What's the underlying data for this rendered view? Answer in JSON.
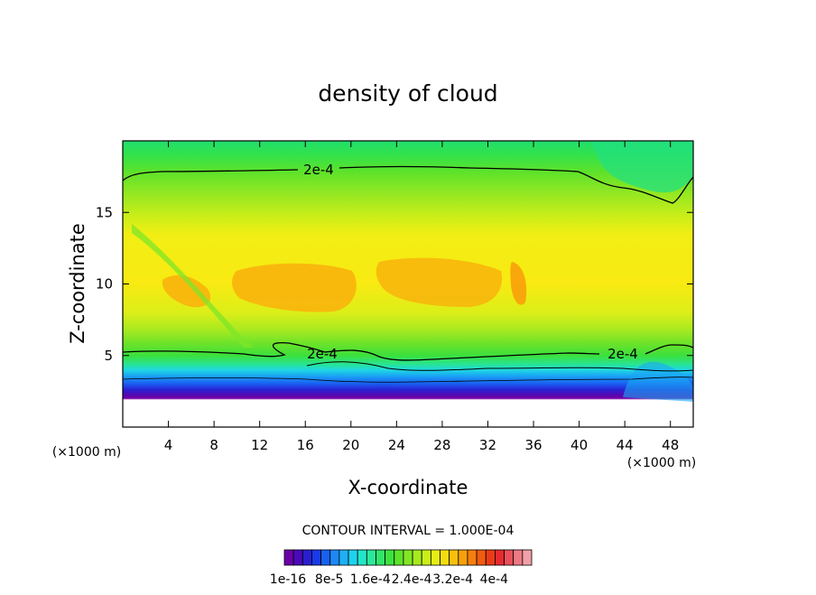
{
  "chart_data": {
    "type": "contour",
    "title": "density of cloud",
    "xlabel": "X-coordinate",
    "ylabel": "Z-coordinate",
    "x_unit_label_left": "(×1000 m)",
    "x_unit_label_right": "(×1000 m)",
    "xlim": [
      0,
      50
    ],
    "ylim": [
      0,
      20
    ],
    "xticks": [
      4,
      8,
      12,
      16,
      20,
      24,
      28,
      32,
      36,
      40,
      44,
      48
    ],
    "yticks": [
      5,
      10,
      15
    ],
    "contour_interval_text": "CONTOUR INTERVAL = 1.000E-04",
    "contour_labels": [
      "2e-4",
      "2e-4",
      "2e-4"
    ],
    "colorbar": {
      "colors": [
        "#6a00a8",
        "#4b0ab8",
        "#2a1fd0",
        "#1a3ae6",
        "#1760f2",
        "#1d88f5",
        "#1fb0f4",
        "#1ed2ee",
        "#22e6c8",
        "#2be89a",
        "#32e46a",
        "#3ee23f",
        "#5ee22c",
        "#82e624",
        "#a6ea1e",
        "#c9ee1a",
        "#e6ee16",
        "#f4dc10",
        "#f8c00c",
        "#f8a00a",
        "#f67f0c",
        "#f05c10",
        "#ea3c18",
        "#e62a30",
        "#e8505a",
        "#ec7a84",
        "#f0a0a8"
      ],
      "tick_labels": [
        "1e-16",
        "8e-5",
        "1.6e-4",
        "2.4e-4",
        "3.2e-4",
        "4e-4"
      ]
    }
  }
}
